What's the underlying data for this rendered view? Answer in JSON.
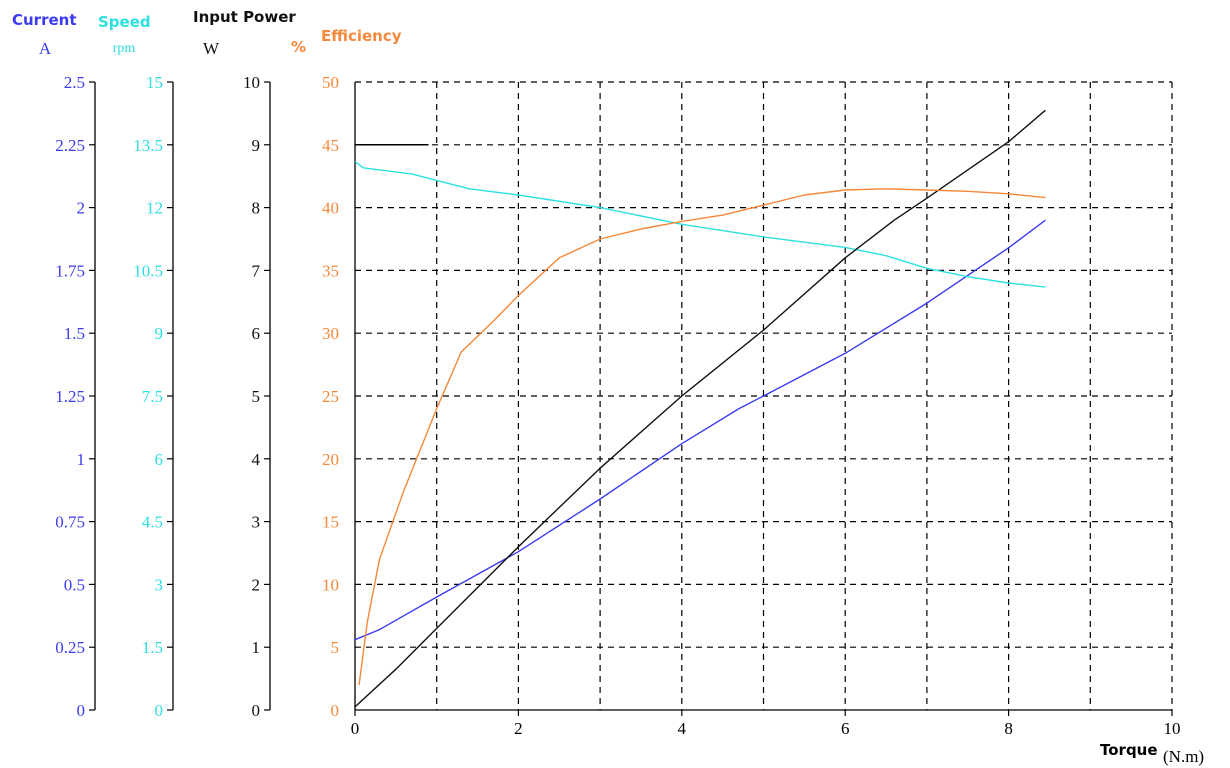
{
  "colors": {
    "current": "#3b3bf0",
    "speed": "#2de0e0",
    "power": "#111111",
    "efficiency": "#f5883a",
    "grid": "#000000"
  },
  "headers": {
    "current": {
      "label": "Current",
      "unit": "A"
    },
    "speed": {
      "label": "Speed",
      "unit": "rpm"
    },
    "power": {
      "label": "Input Power",
      "unit": "W"
    },
    "efficiency": {
      "label": "Efficiency",
      "unit": "%"
    },
    "xaxis": {
      "label": "Torque",
      "unit": "(N.m)"
    }
  },
  "chart_data": {
    "type": "line",
    "title": "",
    "xlabel": "Torque(N.m)",
    "xlim": [
      0,
      10
    ],
    "x_ticks": [
      "0",
      "2",
      "4",
      "6",
      "8",
      "10"
    ],
    "x_grid": [
      1,
      2,
      3,
      4,
      5,
      6,
      7,
      8,
      9,
      10
    ],
    "grid": true,
    "y_axes": [
      {
        "id": "current",
        "label": "Current A",
        "lim": [
          0,
          2.5
        ],
        "ticks": [
          "0",
          "0.25",
          "0.5",
          "0.75",
          "1",
          "1.25",
          "1.5",
          "1.75",
          "2",
          "2.25",
          "2.5"
        ]
      },
      {
        "id": "speed",
        "label": "Speed rpm",
        "lim": [
          0,
          15
        ],
        "ticks": [
          "0",
          "1.5",
          "3",
          "4.5",
          "6",
          "7.5",
          "9",
          "10.5",
          "12",
          "13.5",
          "15"
        ]
      },
      {
        "id": "power",
        "label": "Input Power W",
        "lim": [
          0,
          10
        ],
        "ticks": [
          "0",
          "1",
          "2",
          "3",
          "4",
          "5",
          "6",
          "7",
          "8",
          "9",
          "10"
        ]
      },
      {
        "id": "efficiency",
        "label": "% Efficiency",
        "lim": [
          0,
          50
        ],
        "ticks": [
          "0",
          "5",
          "10",
          "15",
          "20",
          "25",
          "30",
          "35",
          "40",
          "45",
          "50"
        ]
      }
    ],
    "series": [
      {
        "name": "Current",
        "axis": "current",
        "x": [
          0,
          0.3,
          1,
          2,
          3,
          4,
          4.7,
          5,
          6,
          7,
          8,
          8.45
        ],
        "y": [
          0.28,
          0.32,
          0.45,
          0.63,
          0.84,
          1.06,
          1.2,
          1.25,
          1.42,
          1.62,
          1.84,
          1.95
        ]
      },
      {
        "name": "Speed",
        "axis": "speed",
        "x": [
          0,
          0.1,
          0.3,
          0.7,
          1.0,
          1.4,
          2,
          3,
          4,
          5,
          6,
          6.5,
          7,
          7.5,
          8,
          8.45
        ],
        "y": [
          13.1,
          12.95,
          12.9,
          12.8,
          12.65,
          12.45,
          12.3,
          12.0,
          11.6,
          11.3,
          11.05,
          10.85,
          10.55,
          10.35,
          10.2,
          10.1
        ]
      },
      {
        "name": "Input Power",
        "axis": "power",
        "x": [
          0,
          0.5,
          1,
          2,
          3,
          4,
          5,
          6,
          6.6,
          7,
          8,
          8.45
        ],
        "y": [
          0.05,
          0.65,
          1.3,
          2.6,
          3.85,
          5.0,
          6.05,
          7.2,
          7.8,
          8.15,
          9.05,
          9.55
        ]
      },
      {
        "name": "Efficiency",
        "axis": "efficiency",
        "x": [
          0.05,
          0.15,
          0.3,
          0.6,
          1.0,
          1.3,
          1.7,
          2.0,
          2.5,
          3.0,
          3.5,
          4.0,
          4.5,
          5.0,
          5.5,
          6.0,
          6.5,
          7.0,
          7.5,
          8.0,
          8.45
        ],
        "y": [
          2,
          7,
          12,
          17.5,
          24,
          28.5,
          31,
          33,
          36,
          37.5,
          38.3,
          38.9,
          39.4,
          40.2,
          41.0,
          41.4,
          41.5,
          41.4,
          41.3,
          41.1,
          40.8
        ]
      }
    ]
  }
}
